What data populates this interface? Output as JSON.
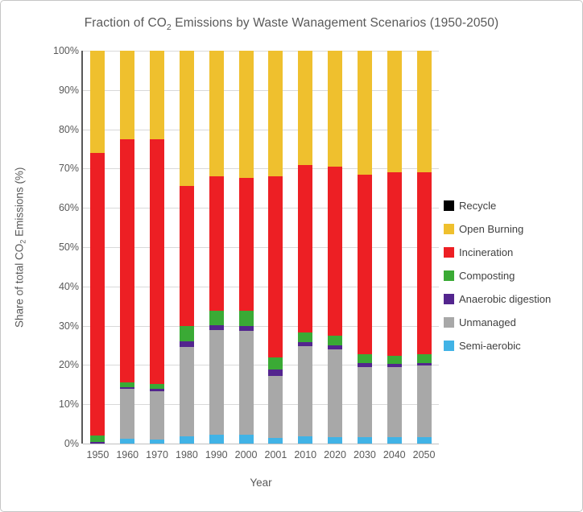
{
  "window": {
    "background": "#ffffff",
    "border_color": "#c6c6c6",
    "text_color": "#595959",
    "gridline_color": "#d9d9d9",
    "axis_line_color": "#595959"
  },
  "title": {
    "pre": "Fraction of CO",
    "sub": "2",
    "post": " Emissions by Waste Wanagement Scenarios (1950-2050)"
  },
  "axes": {
    "y_label": {
      "pre": "Share of total CO",
      "sub": "2",
      "post": " Emissions (%)"
    },
    "x_label": "Year",
    "y_ticks": [
      "0%",
      "10%",
      "20%",
      "30%",
      "40%",
      "50%",
      "60%",
      "70%",
      "80%",
      "90%",
      "100%"
    ]
  },
  "legend": {
    "items_top_to_bottom": [
      {
        "label": "Recycle",
        "color": "#000000"
      },
      {
        "label": "Open Burning",
        "color": "#efc02e"
      },
      {
        "label": "Incineration",
        "color": "#ed1f24"
      },
      {
        "label": "Composting",
        "color": "#3aaa35"
      },
      {
        "label": "Anaerobic digestion",
        "color": "#53258e"
      },
      {
        "label": "Unmanaged",
        "color": "#a8a8a8"
      },
      {
        "label": "Semi-aerobic",
        "color": "#41b3e6"
      }
    ]
  },
  "chart_data": {
    "type": "bar",
    "stacked": true,
    "percent_stacked": true,
    "title": "Fraction of CO2 Emissions by Waste Wanagement Scenarios (1950-2050)",
    "xlabel": "Year",
    "ylabel": "Share of total CO2 Emissions (%)",
    "ylim": [
      0,
      100
    ],
    "y_tick_step": 10,
    "grid": true,
    "legend_position": "right",
    "categories": [
      "1950",
      "1960",
      "1970",
      "1980",
      "1990",
      "2000",
      "2001",
      "2010",
      "2020",
      "2030",
      "2040",
      "2050"
    ],
    "series_bottom_to_top": [
      {
        "name": "Semi-aerobic",
        "color": "#41b3e6",
        "values": [
          0.0,
          1.2,
          1.0,
          1.8,
          2.3,
          2.3,
          1.5,
          1.9,
          1.7,
          1.7,
          1.6,
          1.7
        ]
      },
      {
        "name": "Unmanaged",
        "color": "#a8a8a8",
        "values": [
          0.0,
          12.7,
          12.4,
          22.7,
          26.5,
          26.4,
          15.8,
          23.0,
          22.3,
          17.8,
          17.8,
          18.1
        ]
      },
      {
        "name": "Anaerobic digestion",
        "color": "#53258e",
        "values": [
          0.5,
          0.5,
          0.5,
          1.6,
          1.4,
          1.3,
          1.6,
          1.0,
          1.1,
          0.9,
          0.8,
          0.8
        ]
      },
      {
        "name": "Composting",
        "color": "#3aaa35",
        "values": [
          1.5,
          1.2,
          1.3,
          3.8,
          3.6,
          3.8,
          3.1,
          2.4,
          2.3,
          2.3,
          2.1,
          2.1
        ]
      },
      {
        "name": "Incineration",
        "color": "#ed1f24",
        "values": [
          72.0,
          61.9,
          62.3,
          35.6,
          34.2,
          33.9,
          46.0,
          42.7,
          43.1,
          45.8,
          46.7,
          46.3
        ]
      },
      {
        "name": "Open Burning",
        "color": "#efc02e",
        "values": [
          26.0,
          22.5,
          22.5,
          34.5,
          32.0,
          32.3,
          32.0,
          29.0,
          29.5,
          31.5,
          31.0,
          31.0
        ]
      },
      {
        "name": "Recycle",
        "color": "#000000",
        "values": [
          0,
          0,
          0,
          0,
          0,
          0,
          0,
          0,
          0,
          0,
          0,
          0
        ]
      }
    ]
  }
}
